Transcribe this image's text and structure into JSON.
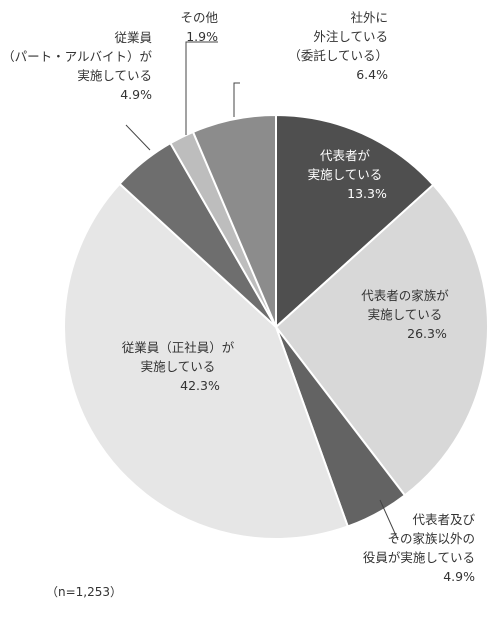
{
  "chart_data": {
    "type": "pie",
    "start_angle_deg": 0,
    "direction": "clockwise",
    "slices": [
      {
        "label_lines": [
          "代表者が",
          "実施している"
        ],
        "value": 13.3,
        "value_label": "13.3%",
        "color": "#4f4f4f",
        "text_color": "#ffffff"
      },
      {
        "label_lines": [
          "代表者の家族が",
          "実施している"
        ],
        "value": 26.3,
        "value_label": "26.3%",
        "color": "#d8d8d8",
        "text_color": "#333333"
      },
      {
        "label_lines": [
          "代表者及び",
          "その家族以外の",
          "役員が実施している"
        ],
        "value": 4.9,
        "value_label": "4.9%",
        "color": "#636363",
        "text_color": "#333333"
      },
      {
        "label_lines": [
          "従業員（正社員）が",
          "実施している"
        ],
        "value": 42.3,
        "value_label": "42.3%",
        "color": "#e6e6e6",
        "text_color": "#333333"
      },
      {
        "label_lines": [
          "従業員",
          "（パート・アルバイト）が",
          "実施している"
        ],
        "value": 4.9,
        "value_label": "4.9%",
        "color": "#6e6e6e",
        "text_color": "#333333"
      },
      {
        "label_lines": [
          "その他"
        ],
        "value": 1.9,
        "value_label": "1.9%",
        "color": "#bdbdbd",
        "text_color": "#333333"
      },
      {
        "label_lines": [
          "社外に",
          "外注している",
          "（委託している）"
        ],
        "value": 6.4,
        "value_label": "6.4%",
        "color": "#8c8c8c",
        "text_color": "#333333"
      }
    ],
    "note": "（n=1,253）"
  }
}
